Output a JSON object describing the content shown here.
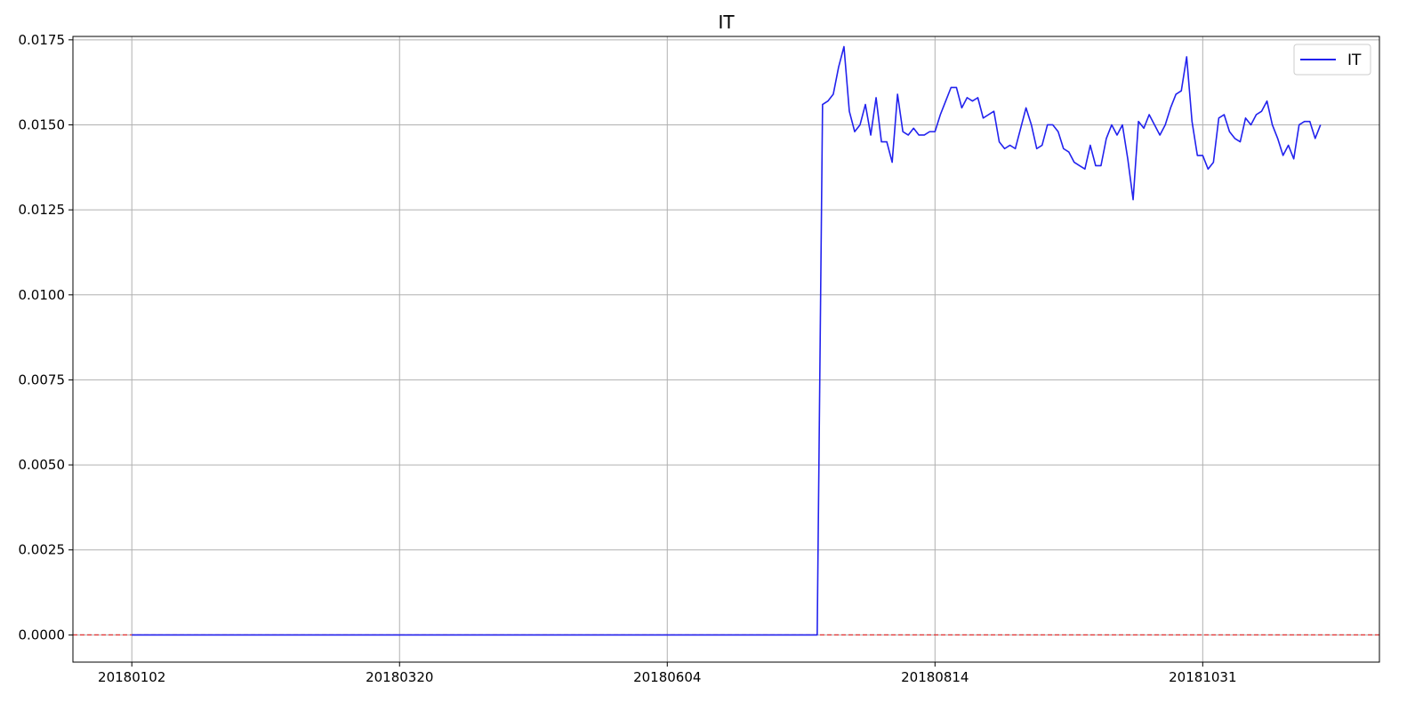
{
  "chart_data": {
    "type": "line",
    "title": "IT",
    "xlabel": "",
    "ylabel": "",
    "grid": true,
    "legend": {
      "placement": "top-right",
      "entries": [
        "IT"
      ]
    },
    "ylim": [
      -0.0008,
      0.0176
    ],
    "y_ticks": [
      "0.0000",
      "0.0025",
      "0.0050",
      "0.0075",
      "0.0100",
      "0.0125",
      "0.0150",
      "0.0175"
    ],
    "y_tick_values": [
      0,
      0.0025,
      0.005,
      0.0075,
      0.01,
      0.0125,
      0.015,
      0.0175
    ],
    "x_ticks": [
      "20180102",
      "20180320",
      "20180604",
      "20180814",
      "20181031"
    ],
    "x_tick_index": [
      0,
      50,
      100,
      150,
      200
    ],
    "x_index_range": [
      -11,
      233
    ],
    "reference_line": {
      "y": 0,
      "color": "#e03030",
      "style": "dashed"
    },
    "series": [
      {
        "name": "IT",
        "color": "#2222ee",
        "zero_until_index": 128,
        "values_from_index": 129,
        "values": [
          0.0156,
          0.0157,
          0.0159,
          0.0167,
          0.0173,
          0.0154,
          0.0148,
          0.015,
          0.0156,
          0.0147,
          0.0158,
          0.0145,
          0.0145,
          0.0139,
          0.0159,
          0.0148,
          0.0147,
          0.0149,
          0.0147,
          0.0147,
          0.0148,
          0.0148,
          0.0153,
          0.0157,
          0.0161,
          0.0161,
          0.0155,
          0.0158,
          0.0157,
          0.0158,
          0.0152,
          0.0153,
          0.0154,
          0.0145,
          0.0143,
          0.0144,
          0.0143,
          0.0149,
          0.0155,
          0.015,
          0.0143,
          0.0144,
          0.015,
          0.015,
          0.0148,
          0.0143,
          0.0142,
          0.0139,
          0.0138,
          0.0137,
          0.0144,
          0.0138,
          0.0138,
          0.0146,
          0.015,
          0.0147,
          0.015,
          0.014,
          0.0128,
          0.0151,
          0.0149,
          0.0153,
          0.015,
          0.0147,
          0.015,
          0.0155,
          0.0159,
          0.016,
          0.017,
          0.0151,
          0.0141,
          0.0141,
          0.0137,
          0.0139,
          0.0152,
          0.0153,
          0.0148,
          0.0146,
          0.0145,
          0.0152,
          0.015,
          0.0153,
          0.0154,
          0.0157,
          0.015,
          0.0146,
          0.0141,
          0.0144,
          0.014,
          0.015,
          0.0151,
          0.0151,
          0.0146,
          0.015
        ]
      }
    ]
  }
}
